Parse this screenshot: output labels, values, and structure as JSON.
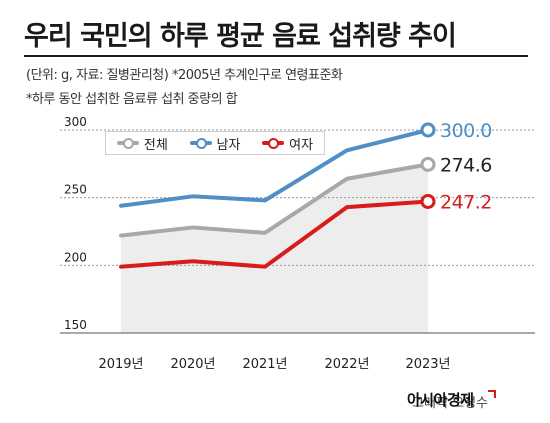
{
  "header": {
    "title": "우리 국민의 하루 평균 음료 섭취량 추이",
    "subtitle1": "(단위: g, 자료: 질병관리청) *2005년 추계인구로 연령표준화",
    "subtitle2": "*하루 동안 섭취한 음료류 섭취 중량의 합"
  },
  "chart_data": {
    "type": "line",
    "categories": [
      "2019년",
      "2020년",
      "2021년",
      "2022년",
      "2023년"
    ],
    "series": [
      {
        "name": "전체",
        "values": [
          222,
          228,
          224,
          264,
          274.6
        ],
        "color": "#a8a8a8"
      },
      {
        "name": "남자",
        "values": [
          244,
          251,
          248,
          285,
          300.0
        ],
        "color": "#4f8fc6"
      },
      {
        "name": "여자",
        "values": [
          199,
          203,
          199,
          243,
          247.2
        ],
        "color": "#d81b1b"
      }
    ],
    "end_labels": [
      "274.6",
      "300.0",
      "247.2"
    ],
    "yticks": [
      150,
      200,
      250,
      300
    ],
    "ylim": [
      150,
      300
    ],
    "grid": true,
    "legend_position": "top-left"
  },
  "footer": {
    "credit": "그래픽 오성수",
    "brand": "아시아경제"
  }
}
